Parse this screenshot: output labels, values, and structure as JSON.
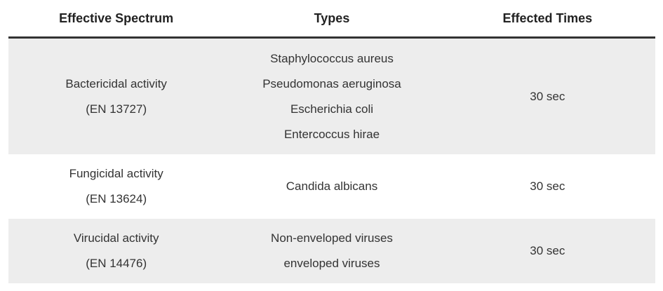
{
  "headers": [
    "Effective Spectrum",
    "Types",
    "Effected Times"
  ],
  "rows": [
    {
      "spectrum": [
        "Bactericidal activity",
        "(EN 13727)"
      ],
      "types": [
        "Staphylococcus aureus",
        "Pseudomonas aeruginosa",
        "Escherichia coli",
        "Entercoccus hirae"
      ],
      "time": "30 sec"
    },
    {
      "spectrum": [
        "Fungicidal activity",
        "(EN 13624)"
      ],
      "types": [
        "Candida albicans"
      ],
      "time": "30 sec"
    },
    {
      "spectrum": [
        "Virucidal activity",
        "(EN 14476)"
      ],
      "types": [
        "Non-enveloped viruses",
        "enveloped viruses"
      ],
      "time": "30 sec"
    }
  ],
  "colors": {
    "stripe": "#ededed",
    "header_border": "#333333",
    "text": "#333333"
  }
}
